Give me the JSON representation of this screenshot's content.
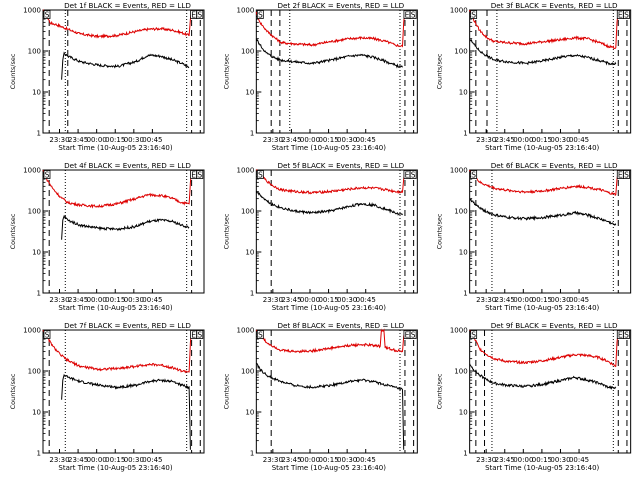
{
  "figure": {
    "x_axis_label": "Start Time (10-Aug-05 23:16:40)",
    "y_axis_label": "Counts/sec",
    "marker_labels": [
      "E",
      "S"
    ],
    "colors": {
      "events": "#000000",
      "lld": "#dd0000",
      "background": "#ffffff",
      "axes": "#000000"
    }
  },
  "chart_data": [
    {
      "type": "line",
      "title": "Det 1f BLACK = Events, RED = LLD",
      "xlabel": "Start Time (10-Aug-05 23:16:40)",
      "ylabel": "Counts/sec",
      "xticks": [
        "23:30",
        "23:45",
        "00:00",
        "00:15",
        "00:30",
        "00:45"
      ],
      "yticks": [
        "1",
        "10",
        "100",
        "1000"
      ],
      "ylog": true,
      "ylim": [
        1,
        1000
      ],
      "grid": false,
      "x_minutes_ref": "minutes after 23:16:40",
      "dashed_lines": [
        5,
        20,
        120,
        127
      ],
      "dotted_lines": [
        18,
        116
      ],
      "markers": [
        {
          "label": "E",
          "at": 120
        },
        {
          "label": "S",
          "at": 125
        }
      ],
      "series": [
        {
          "name": "LLD",
          "color": "#dd0000",
          "x": [
            0,
            3,
            6,
            10,
            20,
            30,
            45,
            60,
            75,
            85,
            95,
            105,
            112,
            118,
            119,
            120
          ],
          "values": [
            1000,
            700,
            480,
            450,
            340,
            260,
            225,
            240,
            300,
            340,
            350,
            320,
            280,
            240,
            600,
            1000
          ]
        },
        {
          "name": "Events",
          "color": "#000000",
          "x": [
            15,
            16,
            17,
            20,
            30,
            45,
            60,
            75,
            85,
            95,
            105,
            112,
            118
          ],
          "values": [
            20,
            60,
            90,
            75,
            55,
            45,
            42,
            55,
            80,
            75,
            60,
            50,
            40
          ]
        }
      ]
    },
    {
      "type": "line",
      "title": "Det 2f BLACK = Events, RED = LLD",
      "xlabel": "Start Time (10-Aug-05 23:16:40)",
      "ylabel": "Counts/sec",
      "xticks": [
        "23:30",
        "23:45",
        "00:00",
        "00:15",
        "00:30",
        "00:45"
      ],
      "yticks": [
        "1",
        "10",
        "100",
        "1000"
      ],
      "ylog": true,
      "ylim": [
        1,
        1000
      ],
      "grid": false,
      "dashed_lines": [
        12,
        19,
        120,
        127
      ],
      "dotted_lines": [
        27,
        116
      ],
      "markers": [
        {
          "label": "E",
          "at": 120
        },
        {
          "label": "S",
          "at": 125
        }
      ],
      "series": [
        {
          "name": "LLD",
          "color": "#dd0000",
          "x": [
            0,
            3,
            8,
            14,
            20,
            30,
            45,
            60,
            75,
            85,
            95,
            105,
            112,
            118,
            119,
            120
          ],
          "values": [
            900,
            500,
            320,
            220,
            160,
            150,
            140,
            170,
            200,
            210,
            200,
            170,
            140,
            130,
            500,
            1000
          ]
        },
        {
          "name": "Events",
          "color": "#000000",
          "x": [
            0,
            3,
            8,
            14,
            20,
            30,
            45,
            60,
            75,
            85,
            95,
            105,
            112,
            118
          ],
          "values": [
            200,
            140,
            90,
            70,
            60,
            55,
            50,
            60,
            75,
            80,
            70,
            55,
            45,
            40
          ]
        }
      ]
    },
    {
      "type": "line",
      "title": "Det 3f BLACK = Events, RED = LLD",
      "xlabel": "Start Time (10-Aug-05 23:16:40)",
      "ylabel": "Counts/sec",
      "xticks": [
        "23:30",
        "23:45",
        "00:00",
        "00:15",
        "00:30",
        "00:45"
      ],
      "yticks": [
        "1",
        "10",
        "100",
        "1000"
      ],
      "ylog": true,
      "ylim": [
        1,
        1000
      ],
      "grid": false,
      "dashed_lines": [
        5,
        14,
        120,
        127
      ],
      "dotted_lines": [
        22,
        116
      ],
      "markers": [
        {
          "label": "E",
          "at": 120
        },
        {
          "label": "S",
          "at": 125
        }
      ],
      "series": [
        {
          "name": "LLD",
          "color": "#dd0000",
          "x": [
            0,
            3,
            8,
            14,
            20,
            30,
            45,
            60,
            75,
            85,
            95,
            105,
            112,
            118,
            119,
            120
          ],
          "values": [
            1000,
            600,
            320,
            210,
            170,
            160,
            150,
            170,
            190,
            210,
            200,
            160,
            130,
            120,
            500,
            1000
          ]
        },
        {
          "name": "Events",
          "color": "#000000",
          "x": [
            0,
            3,
            8,
            14,
            20,
            30,
            45,
            60,
            75,
            85,
            95,
            105,
            112,
            118
          ],
          "values": [
            200,
            150,
            100,
            75,
            60,
            55,
            50,
            58,
            72,
            78,
            70,
            58,
            50,
            48
          ]
        }
      ]
    },
    {
      "type": "line",
      "title": "Det 4f BLACK = Events, RED = LLD",
      "xlabel": "Start Time (10-Aug-05 23:16:40)",
      "ylabel": "Counts/sec",
      "xticks": [
        "23:30",
        "23:45",
        "00:00",
        "00:15",
        "00:30",
        "00:45"
      ],
      "yticks": [
        "1",
        "10",
        "100",
        "1000"
      ],
      "ylog": true,
      "ylim": [
        1,
        1000
      ],
      "grid": false,
      "dashed_lines": [
        5,
        120
      ],
      "dotted_lines": [
        18,
        116
      ],
      "markers": [
        {
          "label": "E",
          "at": 120
        },
        {
          "label": "S",
          "at": 125
        }
      ],
      "series": [
        {
          "name": "LLD",
          "color": "#dd0000",
          "x": [
            0,
            3,
            8,
            14,
            20,
            30,
            45,
            60,
            75,
            85,
            95,
            105,
            112,
            118,
            119,
            120
          ],
          "values": [
            1000,
            600,
            350,
            220,
            160,
            140,
            130,
            150,
            200,
            250,
            240,
            200,
            160,
            150,
            500,
            1000
          ]
        },
        {
          "name": "Events",
          "color": "#000000",
          "x": [
            15,
            16,
            17,
            20,
            30,
            45,
            60,
            75,
            85,
            95,
            105,
            112,
            118
          ],
          "values": [
            20,
            60,
            75,
            60,
            45,
            38,
            36,
            42,
            55,
            60,
            55,
            45,
            40
          ]
        }
      ]
    },
    {
      "type": "line",
      "title": "Det 5f BLACK = Events, RED = LLD",
      "xlabel": "Start Time (10-Aug-05 23:16:40)",
      "ylabel": "Counts/sec",
      "xticks": [
        "23:30",
        "23:45",
        "00:00",
        "00:15",
        "00:30",
        "00:45"
      ],
      "yticks": [
        "1",
        "10",
        "100",
        "1000"
      ],
      "ylog": true,
      "ylim": [
        1,
        1000
      ],
      "grid": false,
      "dashed_lines": [
        12,
        120,
        127
      ],
      "dotted_lines": [
        116
      ],
      "markers": [
        {
          "label": "E",
          "at": 120
        },
        {
          "label": "S",
          "at": 125
        }
      ],
      "series": [
        {
          "name": "LLD",
          "color": "#dd0000",
          "x": [
            0,
            3,
            8,
            14,
            20,
            30,
            45,
            60,
            75,
            85,
            95,
            105,
            112,
            118,
            119,
            120
          ],
          "values": [
            1000,
            800,
            550,
            400,
            330,
            300,
            280,
            300,
            340,
            370,
            360,
            330,
            300,
            290,
            600,
            1000
          ]
        },
        {
          "name": "Events",
          "color": "#000000",
          "x": [
            0,
            3,
            8,
            14,
            20,
            30,
            45,
            60,
            75,
            85,
            95,
            105,
            112,
            118
          ],
          "values": [
            300,
            250,
            180,
            140,
            120,
            100,
            90,
            100,
            130,
            150,
            140,
            110,
            90,
            80
          ]
        }
      ]
    },
    {
      "type": "line",
      "title": "Det 6f BLACK = Events, RED = LLD",
      "xlabel": "Start Time (10-Aug-05 23:16:40)",
      "ylabel": "Counts/sec",
      "xticks": [
        "23:30",
        "23:45",
        "00:00",
        "00:15",
        "00:30",
        "00:45"
      ],
      "yticks": [
        "1",
        "10",
        "100",
        "1000"
      ],
      "ylog": true,
      "ylim": [
        1,
        1000
      ],
      "grid": false,
      "dashed_lines": [
        5,
        120
      ],
      "dotted_lines": [
        18,
        116
      ],
      "markers": [
        {
          "label": "E",
          "at": 120
        },
        {
          "label": "S",
          "at": 125
        }
      ],
      "series": [
        {
          "name": "LLD",
          "color": "#dd0000",
          "x": [
            0,
            3,
            8,
            14,
            20,
            30,
            45,
            60,
            75,
            85,
            95,
            105,
            112,
            118,
            119,
            120
          ],
          "values": [
            1000,
            800,
            500,
            420,
            360,
            320,
            290,
            310,
            360,
            400,
            380,
            330,
            280,
            250,
            600,
            1000
          ]
        },
        {
          "name": "Events",
          "color": "#000000",
          "x": [
            0,
            3,
            8,
            14,
            20,
            30,
            45,
            60,
            75,
            85,
            95,
            105,
            112,
            118
          ],
          "values": [
            200,
            160,
            120,
            95,
            80,
            70,
            65,
            70,
            80,
            90,
            80,
            65,
            55,
            45
          ]
        }
      ]
    },
    {
      "type": "line",
      "title": "Det 7f BLACK = Events, RED = LLD",
      "xlabel": "Start Time (10-Aug-05 23:16:40)",
      "ylabel": "Counts/sec",
      "xticks": [
        "23:30",
        "23:45",
        "00:00",
        "00:15",
        "00:30",
        "00:45"
      ],
      "yticks": [
        "1",
        "10",
        "100",
        "1000"
      ],
      "ylog": true,
      "ylim": [
        1,
        1000
      ],
      "grid": false,
      "dashed_lines": [
        5,
        120,
        127
      ],
      "dotted_lines": [
        18,
        116
      ],
      "markers": [
        {
          "label": "E",
          "at": 120
        },
        {
          "label": "S",
          "at": 125
        }
      ],
      "series": [
        {
          "name": "LLD",
          "color": "#dd0000",
          "x": [
            0,
            3,
            8,
            14,
            20,
            30,
            45,
            60,
            75,
            85,
            95,
            105,
            112,
            118,
            119,
            120
          ],
          "values": [
            1000,
            700,
            400,
            250,
            180,
            130,
            110,
            115,
            130,
            145,
            140,
            120,
            100,
            95,
            500,
            1000
          ]
        },
        {
          "name": "Events",
          "color": "#000000",
          "x": [
            15,
            16,
            17,
            20,
            30,
            45,
            60,
            75,
            85,
            95,
            105,
            112,
            118,
            119
          ],
          "values": [
            20,
            60,
            80,
            70,
            55,
            45,
            40,
            45,
            55,
            60,
            55,
            45,
            40,
            1.2
          ]
        }
      ]
    },
    {
      "type": "line",
      "title": "Det 8f BLACK = Events, RED = LLD",
      "xlabel": "Start Time (10-Aug-05 23:16:40)",
      "ylabel": "Counts/sec",
      "xticks": [
        "23:30",
        "23:45",
        "00:00",
        "00:15",
        "00:30",
        "00:45"
      ],
      "yticks": [
        "1",
        "10",
        "100",
        "1000"
      ],
      "ylog": true,
      "ylim": [
        1,
        1000
      ],
      "grid": false,
      "dashed_lines": [
        12,
        120,
        127
      ],
      "dotted_lines": [
        116
      ],
      "markers": [
        {
          "label": "E",
          "at": 120
        },
        {
          "label": "S",
          "at": 125
        }
      ],
      "series": [
        {
          "name": "LLD",
          "color": "#dd0000",
          "x": [
            0,
            3,
            8,
            14,
            20,
            30,
            45,
            60,
            75,
            85,
            95,
            100,
            101,
            103,
            104,
            110,
            118,
            119,
            120
          ],
          "values": [
            1000,
            800,
            500,
            400,
            320,
            300,
            310,
            360,
            420,
            440,
            420,
            400,
            1000,
            1000,
            380,
            330,
            300,
            700,
            1000
          ]
        },
        {
          "name": "Events",
          "color": "#000000",
          "x": [
            0,
            3,
            8,
            14,
            20,
            30,
            45,
            60,
            75,
            85,
            95,
            105,
            112,
            118,
            119
          ],
          "values": [
            150,
            110,
            80,
            65,
            55,
            45,
            40,
            45,
            55,
            60,
            55,
            45,
            40,
            35,
            1.2
          ]
        }
      ]
    },
    {
      "type": "line",
      "title": "Det 9f BLACK = Events, RED = LLD",
      "xlabel": "Start Time (10-Aug-05 23:16:40)",
      "ylabel": "Counts/sec",
      "xticks": [
        "23:30",
        "23:45",
        "00:00",
        "00:15",
        "00:30",
        "00:45"
      ],
      "yticks": [
        "1",
        "10",
        "100",
        "1000"
      ],
      "ylog": true,
      "ylim": [
        1,
        1000
      ],
      "grid": false,
      "dashed_lines": [
        5,
        12,
        120,
        127
      ],
      "dotted_lines": [
        18,
        116
      ],
      "markers": [
        {
          "label": "E",
          "at": 120
        },
        {
          "label": "S",
          "at": 125
        }
      ],
      "series": [
        {
          "name": "LLD",
          "color": "#dd0000",
          "x": [
            0,
            3,
            8,
            14,
            20,
            30,
            45,
            60,
            75,
            85,
            95,
            105,
            112,
            118,
            119,
            120
          ],
          "values": [
            1000,
            700,
            350,
            250,
            200,
            170,
            160,
            180,
            220,
            250,
            240,
            210,
            170,
            130,
            500,
            1000
          ]
        },
        {
          "name": "Events",
          "color": "#000000",
          "x": [
            0,
            3,
            8,
            14,
            20,
            30,
            45,
            60,
            75,
            85,
            95,
            105,
            112,
            118
          ],
          "values": [
            150,
            110,
            80,
            60,
            50,
            45,
            42,
            48,
            60,
            70,
            60,
            50,
            40,
            38
          ]
        }
      ]
    }
  ]
}
